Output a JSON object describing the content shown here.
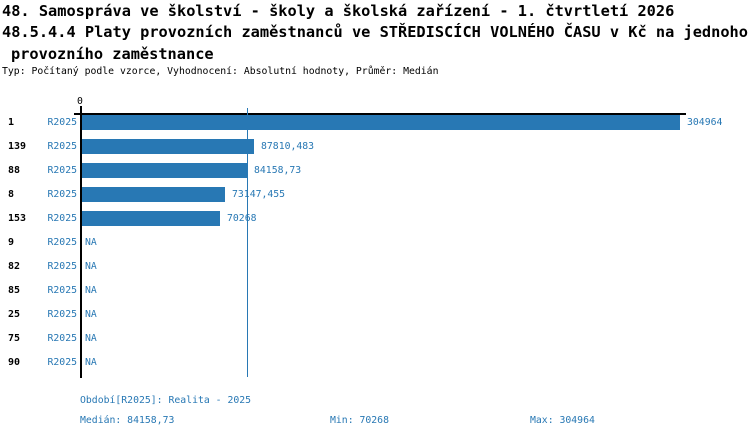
{
  "title": {
    "line1": "48. Samospráva ve školství - školy a školská zařízení - 1. čtvrtletí 2026",
    "line2": "48.5.4.4 Platy provozních zaměstnanců ve STŘEDISCÍCH VOLNÉHO ČASU v Kč na jednoho",
    "line3": "provozního zaměstnance",
    "meta": "Typ: Počítaný podle vzorce, Vyhodnocení: Absolutní hodnoty, Průměr: Medián"
  },
  "chart_data": {
    "type": "bar",
    "orientation": "horizontal",
    "series_label": "R2025",
    "categories": [
      "1",
      "139",
      "88",
      "8",
      "153",
      "9",
      "82",
      "85",
      "25",
      "75",
      "90"
    ],
    "values": [
      304964,
      87810.483,
      84158.73,
      73147.455,
      70268,
      null,
      null,
      null,
      null,
      null,
      null
    ],
    "value_labels": [
      "304964",
      "87810,483",
      "84158,73",
      "73147,455",
      "70268",
      "NA",
      "NA",
      "NA",
      "NA",
      "NA",
      "NA"
    ],
    "na_label": "NA",
    "x_tick_labels": [
      "0"
    ],
    "xlim": [
      0,
      308000
    ],
    "median_line_value": 84158.73,
    "bar_color": "#2878b4",
    "grid": false,
    "legend_position": "none"
  },
  "footer": {
    "period": "Období[R2025]: Realita - 2025",
    "median_label": "Medián: 84158,73",
    "min_label": "Min: 70268",
    "max_label": "Max: 304964"
  },
  "colors": {
    "accent": "#2878b4",
    "text": "#000000",
    "background": "#ffffff"
  }
}
